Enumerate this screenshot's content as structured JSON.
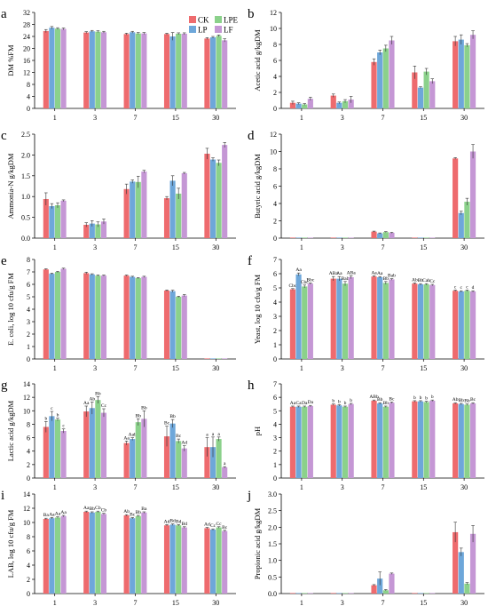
{
  "legend": {
    "entries": [
      "CK",
      "LPE",
      "LP",
      "LF"
    ]
  },
  "colors": {
    "CK": "#EE6B6E",
    "LPE": "#8BD18B",
    "LP": "#6EA7DA",
    "LF": "#C597D5",
    "axis": "#000000"
  },
  "chart_data": [
    {
      "panel": "a",
      "type": "bar",
      "ylabel": "DM %FM",
      "ylim": [
        0,
        32
      ],
      "yticks": [
        0,
        4,
        8,
        12,
        16,
        20,
        24,
        28,
        32
      ],
      "categories": [
        "1",
        "3",
        "7",
        "15",
        "30"
      ],
      "series": [
        {
          "name": "CK",
          "values": [
            25.8,
            25.3,
            24.8,
            24.8,
            23.3
          ],
          "errors": [
            0.5,
            0.3,
            0.3,
            0.3,
            0.3
          ]
        },
        {
          "name": "LP",
          "values": [
            26.9,
            25.7,
            25.4,
            24.0,
            23.7
          ],
          "errors": [
            0.4,
            0.3,
            0.3,
            1.3,
            0.3
          ]
        },
        {
          "name": "LPE",
          "values": [
            26.6,
            25.6,
            25.0,
            24.9,
            24.2
          ],
          "errors": [
            0.3,
            0.3,
            0.3,
            0.3,
            0.3
          ]
        },
        {
          "name": "LF",
          "values": [
            26.5,
            25.4,
            25.0,
            24.9,
            22.7
          ],
          "errors": [
            0.3,
            0.3,
            0.3,
            0.3,
            0.5
          ]
        }
      ]
    },
    {
      "panel": "b",
      "type": "bar",
      "ylabel": "Acetic acid g/kgDM",
      "ylim": [
        0,
        12
      ],
      "yticks": [
        0,
        2,
        4,
        6,
        8,
        10,
        12
      ],
      "categories": [
        "1",
        "3",
        "7",
        "15",
        "30"
      ],
      "series": [
        {
          "name": "CK",
          "values": [
            0.7,
            1.6,
            5.8,
            4.5,
            8.4
          ],
          "errors": [
            0.2,
            0.2,
            0.4,
            0.8,
            0.6
          ]
        },
        {
          "name": "LP",
          "values": [
            0.6,
            0.7,
            7.0,
            2.6,
            8.6
          ],
          "errors": [
            0.1,
            0.1,
            0.3,
            0.1,
            0.6
          ]
        },
        {
          "name": "LPE",
          "values": [
            0.5,
            0.9,
            7.5,
            4.6,
            7.9
          ],
          "errors": [
            0.1,
            0.2,
            0.4,
            0.4,
            0.2
          ]
        },
        {
          "name": "LF",
          "values": [
            1.2,
            1.1,
            8.5,
            3.4,
            9.2
          ],
          "errors": [
            0.2,
            0.4,
            0.5,
            0.3,
            0.5
          ]
        }
      ]
    },
    {
      "panel": "c",
      "type": "bar",
      "ylabel": "Ammonia-N g/kgDM",
      "ylim": [
        0,
        2.5
      ],
      "yticks": [
        0.0,
        0.5,
        1.0,
        1.5,
        2.0,
        2.5
      ],
      "categories": [
        "1",
        "3",
        "7",
        "15",
        "30"
      ],
      "series": [
        {
          "name": "CK",
          "values": [
            0.94,
            0.32,
            1.18,
            0.96,
            2.03
          ],
          "errors": [
            0.15,
            0.05,
            0.12,
            0.04,
            0.13
          ]
        },
        {
          "name": "LP",
          "values": [
            0.77,
            0.35,
            1.36,
            1.38,
            1.89
          ],
          "errors": [
            0.06,
            0.07,
            0.04,
            0.12,
            0.04
          ]
        },
        {
          "name": "LPE",
          "values": [
            0.79,
            0.33,
            1.35,
            1.07,
            1.81
          ],
          "errors": [
            0.06,
            0.06,
            0.14,
            0.13,
            0.07
          ]
        },
        {
          "name": "LF",
          "values": [
            0.9,
            0.4,
            1.6,
            1.56,
            2.24
          ],
          "errors": [
            0.02,
            0.06,
            0.03,
            0.02,
            0.06
          ]
        }
      ]
    },
    {
      "panel": "d",
      "type": "bar",
      "ylabel": "Butyric acid g/kgDM",
      "ylim": [
        0,
        12
      ],
      "yticks": [
        0,
        2,
        4,
        6,
        8,
        10,
        12
      ],
      "categories": [
        "1",
        "3",
        "7",
        "15",
        "30"
      ],
      "series": [
        {
          "name": "CK",
          "values": [
            0,
            0,
            0.75,
            0,
            9.2
          ],
          "errors": [
            0,
            0,
            0.06,
            0,
            0.1
          ]
        },
        {
          "name": "LP",
          "values": [
            0,
            0,
            0.55,
            0,
            2.9
          ],
          "errors": [
            0,
            0,
            0.05,
            0,
            0.2
          ]
        },
        {
          "name": "LPE",
          "values": [
            0,
            0,
            0.7,
            0,
            4.2
          ],
          "errors": [
            0,
            0,
            0.05,
            0,
            0.4
          ]
        },
        {
          "name": "LF",
          "values": [
            0,
            0,
            0.62,
            0,
            10.0
          ],
          "errors": [
            0,
            0,
            0.05,
            0,
            0.8
          ]
        }
      ]
    },
    {
      "panel": "e",
      "type": "bar",
      "ylabel": "E. coli, log 10 cfu/g FM",
      "ylim": [
        0,
        8
      ],
      "yticks": [
        0,
        1,
        2,
        3,
        4,
        5,
        6,
        7,
        8
      ],
      "categories": [
        "1",
        "3",
        "7",
        "15",
        "30"
      ],
      "series": [
        {
          "name": "CK",
          "values": [
            7.2,
            6.9,
            6.7,
            5.5,
            0
          ],
          "errors": [
            0.05,
            0.08,
            0.05,
            0.05,
            0
          ]
        },
        {
          "name": "LP",
          "values": [
            6.85,
            6.8,
            6.6,
            5.45,
            0
          ],
          "errors": [
            0.05,
            0.05,
            0.05,
            0.08,
            0
          ]
        },
        {
          "name": "LPE",
          "values": [
            7.0,
            6.7,
            6.5,
            5.0,
            0
          ],
          "errors": [
            0.05,
            0.05,
            0.05,
            0.05,
            0
          ]
        },
        {
          "name": "LF",
          "values": [
            7.25,
            6.7,
            6.6,
            5.1,
            0
          ],
          "errors": [
            0.05,
            0.05,
            0.05,
            0.08,
            0
          ]
        }
      ]
    },
    {
      "panel": "f",
      "type": "bar",
      "ylabel": "Yeast, log 10 cfu/g FM",
      "ylim": [
        0,
        7
      ],
      "yticks": [
        0,
        1,
        2,
        3,
        4,
        5,
        6,
        7
      ],
      "categories": [
        "1",
        "3",
        "7",
        "15",
        "30"
      ],
      "series": [
        {
          "name": "CK",
          "values": [
            4.9,
            5.65,
            5.8,
            5.3,
            4.8
          ],
          "errors": [
            0.05,
            0.15,
            0.05,
            0.05,
            0.05
          ]
        },
        {
          "name": "LP",
          "values": [
            5.95,
            5.65,
            5.75,
            5.25,
            4.75
          ],
          "errors": [
            0.1,
            0.15,
            0.05,
            0.05,
            0.05
          ]
        },
        {
          "name": "LPE",
          "values": [
            5.1,
            5.3,
            5.35,
            5.25,
            4.8
          ],
          "errors": [
            0.1,
            0.15,
            0.1,
            0.05,
            0.05
          ]
        },
        {
          "name": "LF",
          "values": [
            5.3,
            5.75,
            5.6,
            5.2,
            4.75
          ],
          "errors": [
            0.05,
            0.1,
            0.05,
            0.05,
            0.05
          ]
        }
      ],
      "sig_labels": [
        [
          "Cbc",
          "Aa",
          "Cbc",
          "Bbc"
        ],
        [
          "ABa",
          "Aa",
          "Bab",
          "ABa"
        ],
        [
          "Aa",
          "Aa",
          "Bb",
          "Bab"
        ],
        [
          "Ab",
          "Bb",
          "Cab",
          "Cc"
        ],
        [
          "c",
          "c",
          "c",
          "d"
        ]
      ]
    },
    {
      "panel": "g",
      "type": "bar",
      "ylabel": "Lactic acid g/kgDM",
      "ylim": [
        0,
        14
      ],
      "yticks": [
        0,
        2,
        4,
        6,
        8,
        10,
        12,
        14
      ],
      "categories": [
        "1",
        "3",
        "7",
        "15",
        "30"
      ],
      "series": [
        {
          "name": "CK",
          "values": [
            7.6,
            9.9,
            5.2,
            6.2,
            4.6
          ],
          "errors": [
            0.8,
            0.8,
            0.3,
            1.5,
            1.4
          ]
        },
        {
          "name": "LP",
          "values": [
            9.2,
            10.4,
            5.8,
            8.1,
            4.6
          ],
          "errors": [
            0.7,
            0.9,
            0.2,
            0.6,
            1.5
          ]
        },
        {
          "name": "LPE",
          "values": [
            8.7,
            11.6,
            8.3,
            5.5,
            5.8
          ],
          "errors": [
            0.2,
            0.5,
            0.5,
            0.3,
            0.3
          ]
        },
        {
          "name": "LF",
          "values": [
            7.0,
            9.7,
            8.8,
            4.4,
            1.6
          ],
          "errors": [
            0.3,
            0.6,
            1.2,
            0.4,
            0.1
          ]
        }
      ],
      "sig_labels": [
        [
          "b",
          "c",
          "b",
          "c"
        ],
        [
          "Aa",
          "Ab",
          "Bb",
          "Cc"
        ],
        [
          "Aa",
          "Aab",
          "Bb",
          "Bb"
        ],
        [
          "Bc",
          "Bb",
          "Bc",
          "Ad"
        ],
        [
          "a",
          "a",
          "a",
          "a"
        ]
      ]
    },
    {
      "panel": "h",
      "type": "bar",
      "ylabel": "pH",
      "ylim": [
        0,
        7
      ],
      "yticks": [
        0,
        1,
        2,
        3,
        4,
        5,
        6,
        7
      ],
      "categories": [
        "1",
        "3",
        "7",
        "15",
        "30"
      ],
      "series": [
        {
          "name": "CK",
          "values": [
            5.3,
            5.45,
            5.75,
            5.7,
            5.55
          ],
          "errors": [
            0.05,
            0.05,
            0.05,
            0.05,
            0.05
          ]
        },
        {
          "name": "LP",
          "values": [
            5.3,
            5.4,
            5.55,
            5.7,
            5.5
          ],
          "errors": [
            0.05,
            0.05,
            0.05,
            0.05,
            0.05
          ]
        },
        {
          "name": "LPE",
          "values": [
            5.3,
            5.3,
            5.3,
            5.65,
            5.45
          ],
          "errors": [
            0.05,
            0.05,
            0.05,
            0.05,
            0.05
          ]
        },
        {
          "name": "LF",
          "values": [
            5.35,
            5.5,
            5.6,
            5.75,
            5.55
          ],
          "errors": [
            0.05,
            0.05,
            0.05,
            0.05,
            0.05
          ]
        }
      ],
      "sig_labels": [
        [
          "Aa",
          "Ca",
          "Da",
          "Da"
        ],
        [
          "b",
          "b",
          "b",
          "b"
        ],
        [
          "ABb",
          "Bb",
          "Bb",
          "Bc"
        ],
        [
          "b",
          "b",
          "b",
          "b"
        ],
        [
          "Ab",
          "Bb",
          "Bb",
          "Bc"
        ]
      ]
    },
    {
      "panel": "i",
      "type": "bar",
      "ylabel": "LAB, log 10 cfu/g FM",
      "ylim": [
        0,
        14
      ],
      "yticks": [
        0,
        2,
        4,
        6,
        8,
        10,
        12,
        14
      ],
      "categories": [
        "1",
        "3",
        "7",
        "15",
        "30"
      ],
      "series": [
        {
          "name": "CK",
          "values": [
            10.5,
            11.5,
            11.0,
            9.6,
            9.2
          ],
          "errors": [
            0.1,
            0.1,
            0.1,
            0.1,
            0.1
          ]
        },
        {
          "name": "LP",
          "values": [
            10.6,
            11.4,
            10.6,
            9.7,
            9.0
          ],
          "errors": [
            0.1,
            0.1,
            0.1,
            0.1,
            0.1
          ]
        },
        {
          "name": "LPE",
          "values": [
            10.7,
            11.5,
            10.9,
            9.6,
            9.3
          ],
          "errors": [
            0.1,
            0.1,
            0.1,
            0.1,
            0.1
          ]
        },
        {
          "name": "LF",
          "values": [
            10.9,
            11.2,
            11.4,
            9.3,
            8.8
          ],
          "errors": [
            0.1,
            0.1,
            0.1,
            0.1,
            0.1
          ]
        }
      ],
      "sig_labels": [
        [
          "Ba",
          "Aa",
          "Aa",
          "Aa"
        ],
        [
          "Aa",
          "Bb",
          "Cb",
          "Cb"
        ],
        [
          "Ab",
          "Bc",
          "Bb",
          "Ba"
        ],
        [
          "Ad",
          "Bd",
          "Bd",
          "Bd"
        ],
        [
          "Ad",
          "Cc",
          "Cc",
          "Bc"
        ]
      ]
    },
    {
      "panel": "j",
      "type": "bar",
      "ylabel": "Propionic acid g/kgDM",
      "ylim": [
        0,
        3.0
      ],
      "yticks": [
        0.0,
        0.5,
        1.0,
        1.5,
        2.0,
        2.5,
        3.0
      ],
      "categories": [
        "1",
        "3",
        "7",
        "15",
        "30"
      ],
      "series": [
        {
          "name": "CK",
          "values": [
            0,
            0,
            0.25,
            0,
            1.85
          ],
          "errors": [
            0,
            0,
            0.02,
            0,
            0.3
          ]
        },
        {
          "name": "LP",
          "values": [
            0,
            0,
            0.45,
            0,
            1.25
          ],
          "errors": [
            0,
            0,
            0.2,
            0,
            0.12
          ]
        },
        {
          "name": "LPE",
          "values": [
            0,
            0,
            0.1,
            0,
            0.3
          ],
          "errors": [
            0,
            0,
            0.02,
            0,
            0.03
          ]
        },
        {
          "name": "LF",
          "values": [
            0,
            0,
            0.6,
            0,
            1.8
          ],
          "errors": [
            0,
            0,
            0.02,
            0,
            0.25
          ]
        }
      ]
    }
  ]
}
